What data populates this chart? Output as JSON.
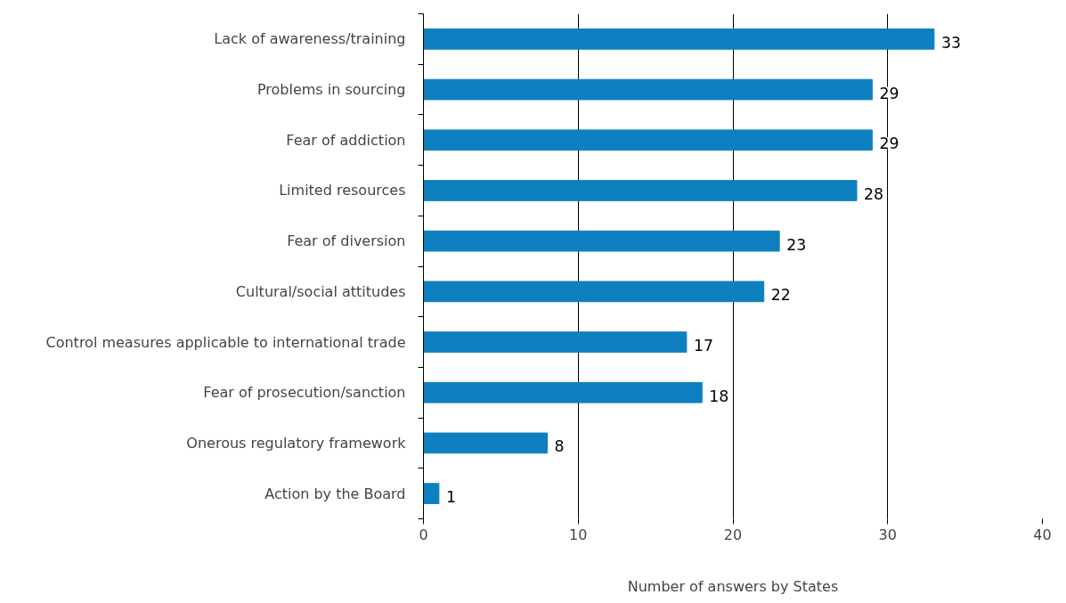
{
  "chart_data": {
    "type": "bar",
    "orientation": "horizontal",
    "xlabel": "Number of answers by States",
    "categories": [
      "Lack of awareness/training",
      "Problems in sourcing",
      "Fear of addiction",
      "Limited resources",
      "Fear of diversion",
      "Cultural/social attitudes",
      "Control measures applicable to international trade",
      "Fear of prosecution/sanction",
      "Onerous regulatory framework",
      "Action by the Board"
    ],
    "values": [
      33,
      29,
      29,
      28,
      23,
      22,
      17,
      18,
      8,
      1
    ],
    "color": "#0e7fbf",
    "xlim": [
      0,
      40
    ],
    "xticks": [
      0,
      10,
      20,
      30,
      40
    ],
    "grid": "x",
    "data_labels": true
  }
}
